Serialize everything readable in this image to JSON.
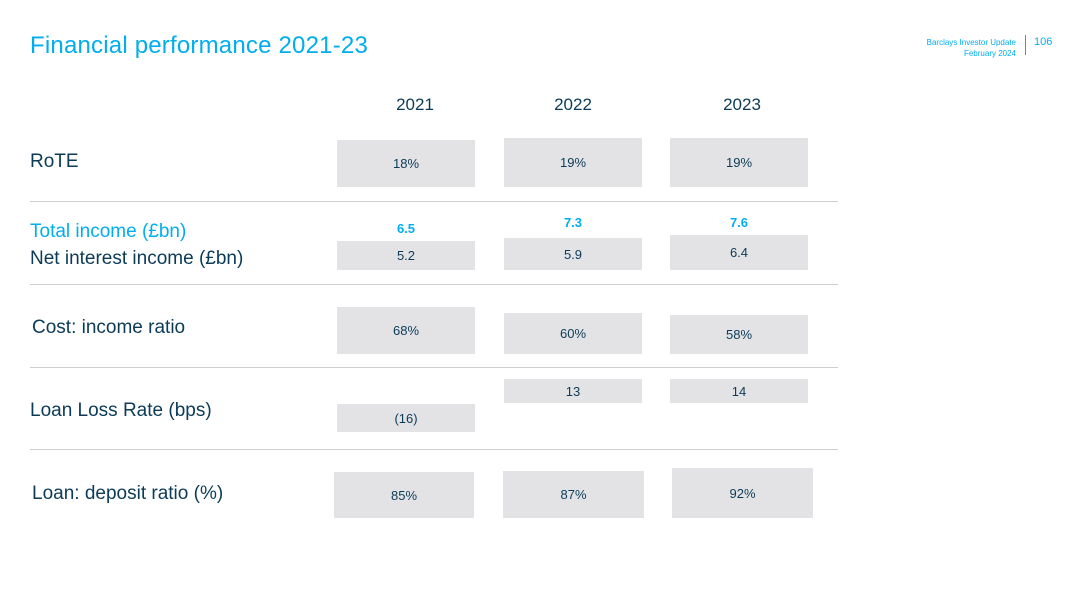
{
  "header": {
    "title": "Financial performance 2021-23",
    "company_line": "Barclays Investor Update",
    "date_line": "February 2024",
    "page_number": "106"
  },
  "years": [
    "2021",
    "2022",
    "2023"
  ],
  "rows": {
    "rote": {
      "label": "RoTE",
      "values": [
        "18%",
        "19%",
        "19%"
      ]
    },
    "total_income": {
      "label": "Total income (£bn)",
      "values": [
        "6.5",
        "7.3",
        "7.6"
      ]
    },
    "nii": {
      "label": "Net interest income (£bn)",
      "values": [
        "5.2",
        "5.9",
        "6.4"
      ]
    },
    "cost_income": {
      "label": "Cost: income ratio",
      "values": [
        "68%",
        "60%",
        "58%"
      ]
    },
    "llr": {
      "label": "Loan Loss Rate (bps)",
      "values": [
        "(16)",
        "13",
        "14"
      ]
    },
    "loan_deposit": {
      "label": "Loan: deposit ratio (%)",
      "values": [
        "85%",
        "87%",
        "92%"
      ]
    }
  },
  "colors": {
    "accent": "#00aeef",
    "text_dark": "#0b3b57",
    "box_fill": "#e3e3e6"
  }
}
